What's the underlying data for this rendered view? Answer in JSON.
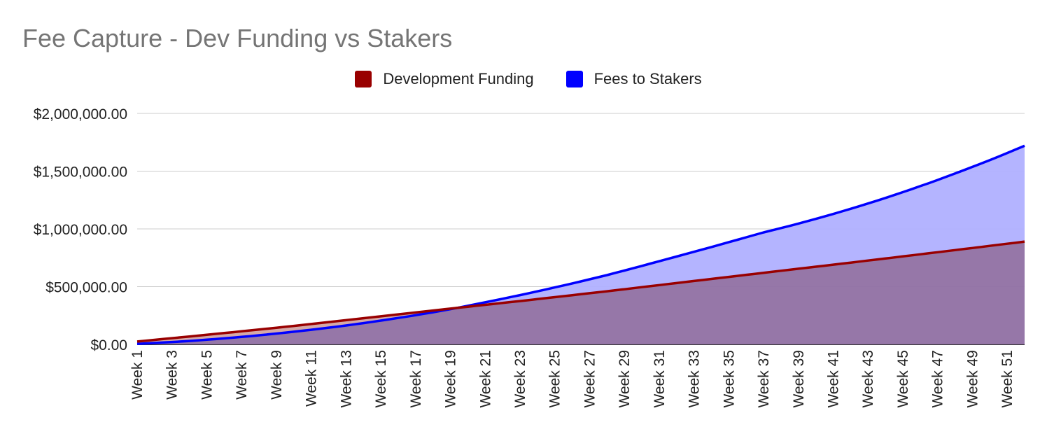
{
  "chart_data": {
    "type": "area",
    "title": "Fee Capture - Dev Funding vs Stakers",
    "xlabel": "",
    "ylabel": "",
    "ylim": [
      0,
      2000000
    ],
    "y_ticks": [
      "$0.00",
      "$500,000.00",
      "$1,000,000.00",
      "$1,500,000.00",
      "$2,000,000.00"
    ],
    "y_tick_values": [
      0,
      500000,
      1000000,
      1500000,
      2000000
    ],
    "x_tick_labels": [
      "Week 1",
      "Week 3",
      "Week 5",
      "Week 7",
      "Week 9",
      "Week 11",
      "Week 13",
      "Week 15",
      "Week 17",
      "Week 19",
      "Week 21",
      "Week 23",
      "Week 25",
      "Week 27",
      "Week 29",
      "Week 31",
      "Week 33",
      "Week 35",
      "Week 37",
      "Week 39",
      "Week 41",
      "Week 43",
      "Week 45",
      "Week 47",
      "Week 49",
      "Week 51"
    ],
    "x_range": [
      1,
      52
    ],
    "grid": true,
    "legend_position": "top",
    "series": [
      {
        "name": "Development Funding",
        "color": "#990000",
        "fill": "#cc9999",
        "points": [
          [
            1,
            25000
          ],
          [
            10,
            160000
          ],
          [
            19,
            310000
          ],
          [
            28,
            460000
          ],
          [
            37,
            620000
          ],
          [
            46,
            780000
          ],
          [
            52,
            890000
          ]
        ]
      },
      {
        "name": "Fees to Stakers",
        "color": "#0000ff",
        "fill": "#b0b0ff",
        "points": [
          [
            1,
            5000
          ],
          [
            10,
            110000
          ],
          [
            19,
            305000
          ],
          [
            28,
            600000
          ],
          [
            37,
            970000
          ],
          [
            46,
            1370000
          ],
          [
            52,
            1720000
          ]
        ]
      }
    ]
  }
}
